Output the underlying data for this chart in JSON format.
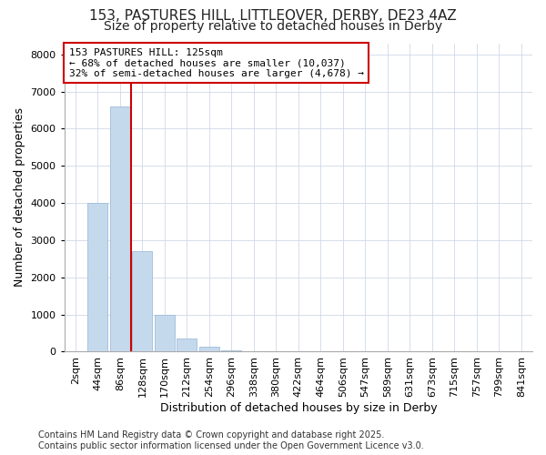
{
  "title_line1": "153, PASTURES HILL, LITTLEOVER, DERBY, DE23 4AZ",
  "title_line2": "Size of property relative to detached houses in Derby",
  "xlabel": "Distribution of detached houses by size in Derby",
  "ylabel": "Number of detached properties",
  "categories": [
    "2sqm",
    "44sqm",
    "86sqm",
    "128sqm",
    "170sqm",
    "212sqm",
    "254sqm",
    "296sqm",
    "338sqm",
    "380sqm",
    "422sqm",
    "464sqm",
    "506sqm",
    "547sqm",
    "589sqm",
    "631sqm",
    "673sqm",
    "715sqm",
    "757sqm",
    "799sqm",
    "841sqm"
  ],
  "values": [
    0,
    4000,
    6600,
    2700,
    1000,
    350,
    130,
    30,
    0,
    0,
    0,
    0,
    0,
    0,
    0,
    0,
    0,
    0,
    0,
    0,
    0
  ],
  "bar_color": "#c5d9ed",
  "bar_edge_color": "#a0bcd8",
  "vline_color": "#cc0000",
  "vline_x": 2.5,
  "annotation_line1": "153 PASTURES HILL: 125sqm",
  "annotation_line2": "← 68% of detached houses are smaller (10,037)",
  "annotation_line3": "32% of semi-detached houses are larger (4,678) →",
  "annotation_box_color": "#ffffff",
  "annotation_box_edge": "#cc0000",
  "ylim": [
    0,
    8300
  ],
  "yticks": [
    0,
    1000,
    2000,
    3000,
    4000,
    5000,
    6000,
    7000,
    8000
  ],
  "grid_color": "#d0d8e8",
  "background_color": "#ffffff",
  "plot_bg_color": "#ffffff",
  "footer_line1": "Contains HM Land Registry data © Crown copyright and database right 2025.",
  "footer_line2": "Contains public sector information licensed under the Open Government Licence v3.0.",
  "title_fontsize": 11,
  "subtitle_fontsize": 10,
  "label_fontsize": 9,
  "tick_fontsize": 8,
  "annotation_fontsize": 8,
  "footer_fontsize": 7
}
